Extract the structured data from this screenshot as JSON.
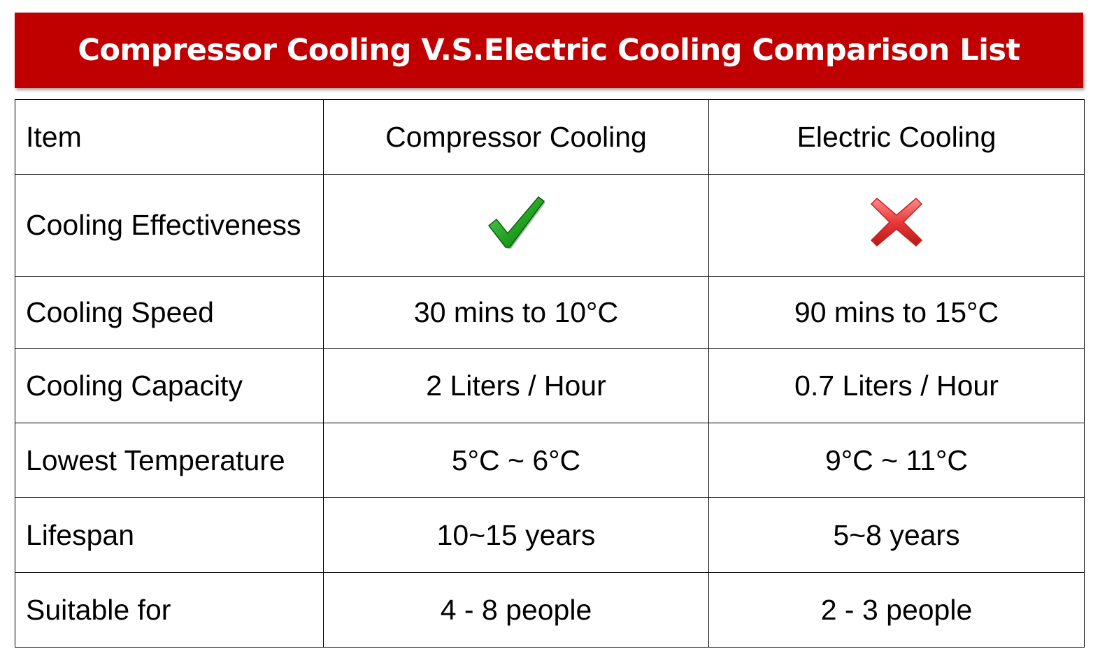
{
  "title": "Compressor Cooling V.S.Electric Cooling Comparison List",
  "colors": {
    "banner": "#c00000",
    "banner_text": "#ffffff",
    "check": "#22a322",
    "cross": "#e83a3a"
  },
  "table": {
    "header": {
      "item": "Item",
      "col1": "Compressor Cooling",
      "col2": "Electric Cooling"
    },
    "rows": [
      {
        "label": "Cooling Effectiveness",
        "col1_icon": "check-icon",
        "col2_icon": "cross-icon"
      },
      {
        "label": "Cooling Speed",
        "col1": "30 mins to 10°C",
        "col2": "90 mins to 15°C"
      },
      {
        "label": "Cooling Capacity",
        "col1": "2 Liters / Hour",
        "col2": "0.7 Liters / Hour"
      },
      {
        "label": "Lowest Temperature",
        "col1": "5°C ~ 6°C",
        "col2": "9°C ~ 11°C"
      },
      {
        "label": "Lifespan",
        "col1": "10~15 years",
        "col2": "5~8 years"
      },
      {
        "label": "Suitable for",
        "col1": "4 - 8 people",
        "col2": "2 - 3 people"
      }
    ]
  }
}
